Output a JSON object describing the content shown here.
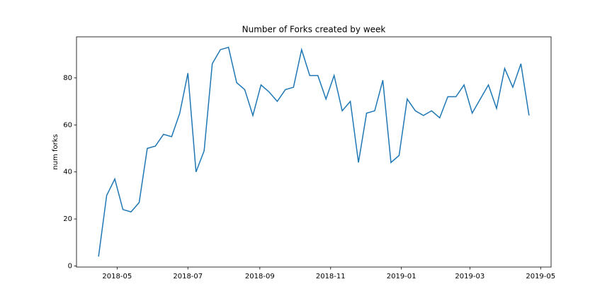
{
  "chart_data": {
    "type": "line",
    "title": "Number of Forks created by week",
    "ylabel": "num forks",
    "x": [
      "2018-04-15",
      "2018-04-22",
      "2018-04-29",
      "2018-05-06",
      "2018-05-13",
      "2018-05-20",
      "2018-05-27",
      "2018-06-03",
      "2018-06-10",
      "2018-06-17",
      "2018-06-24",
      "2018-07-01",
      "2018-07-08",
      "2018-07-15",
      "2018-07-22",
      "2018-07-29",
      "2018-08-05",
      "2018-08-12",
      "2018-08-19",
      "2018-08-26",
      "2018-09-02",
      "2018-09-09",
      "2018-09-16",
      "2018-09-23",
      "2018-09-30",
      "2018-10-07",
      "2018-10-14",
      "2018-10-21",
      "2018-10-28",
      "2018-11-04",
      "2018-11-11",
      "2018-11-18",
      "2018-11-25",
      "2018-12-02",
      "2018-12-09",
      "2018-12-16",
      "2018-12-23",
      "2018-12-30",
      "2019-01-06",
      "2019-01-13",
      "2019-01-20",
      "2019-01-27",
      "2019-02-03",
      "2019-02-10",
      "2019-02-17",
      "2019-02-24",
      "2019-03-03",
      "2019-03-10",
      "2019-03-17",
      "2019-03-24",
      "2019-03-31",
      "2019-04-07",
      "2019-04-14",
      "2019-04-21"
    ],
    "series": [
      {
        "name": "num forks",
        "color": "#1f77b4",
        "values": [
          4,
          30,
          37,
          24,
          23,
          27,
          50,
          51,
          56,
          55,
          65,
          82,
          40,
          49,
          86,
          92,
          93,
          78,
          75,
          64,
          77,
          74,
          70,
          75,
          76,
          92,
          81,
          81,
          71,
          81,
          66,
          70,
          44,
          65,
          66,
          79,
          44,
          47,
          71,
          66,
          64,
          66,
          63,
          72,
          72,
          77,
          65,
          71,
          77,
          67,
          84,
          76,
          86,
          64
        ]
      }
    ],
    "xlim": [
      "2018-03-27",
      "2019-05-10"
    ],
    "xticks": [
      "2018-05",
      "2018-07",
      "2018-09",
      "2018-11",
      "2019-01",
      "2019-03",
      "2019-05"
    ],
    "ylim": [
      -0.45,
      97.45
    ],
    "yticks": [
      0,
      20,
      40,
      60,
      80
    ],
    "grid": false
  }
}
